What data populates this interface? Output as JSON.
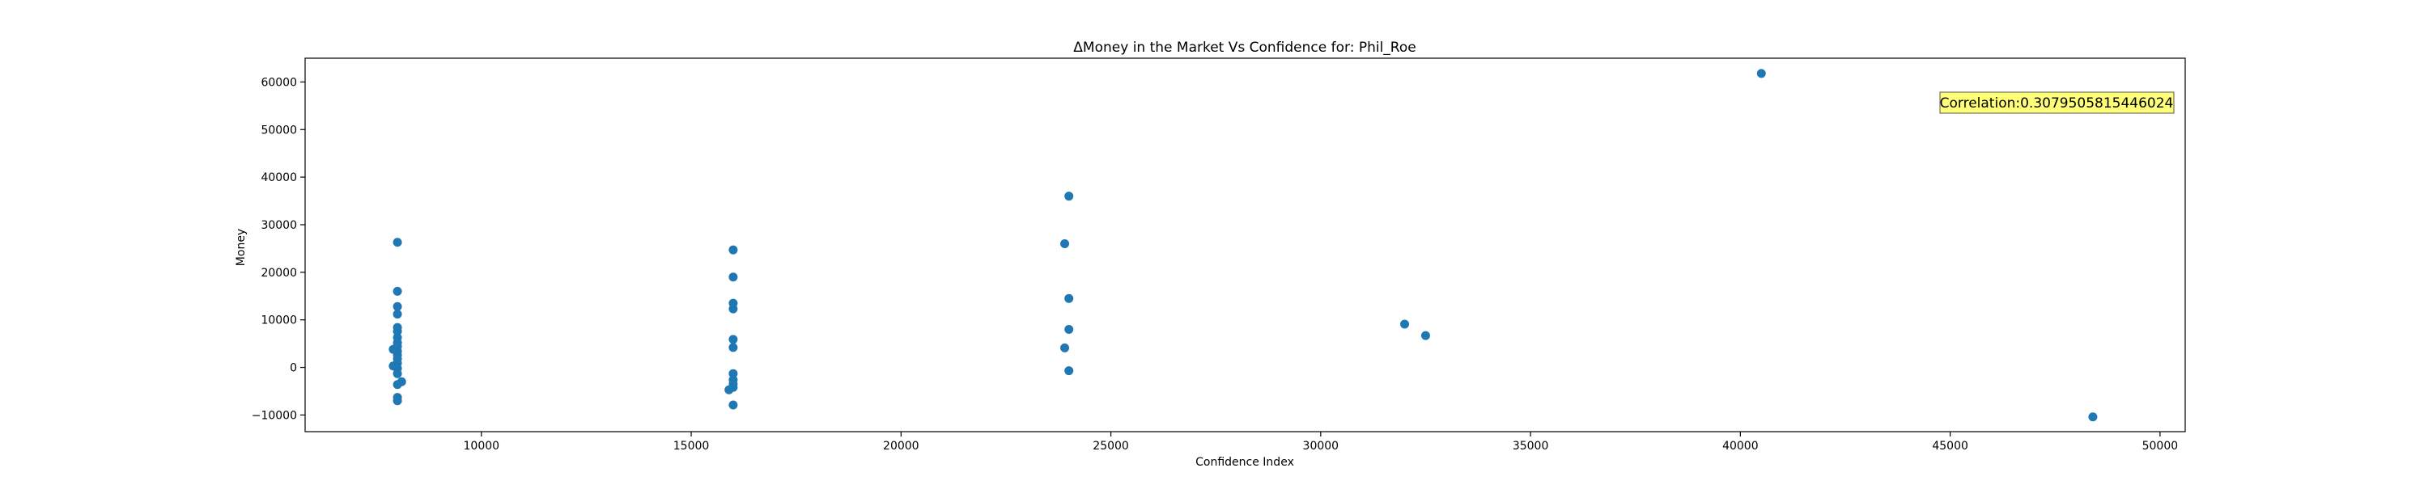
{
  "chart_data": {
    "type": "scatter",
    "title": "ΔMoney in the Market Vs Confidence for: Phil_Roe",
    "xlabel": "Confidence Index",
    "ylabel": "Money",
    "xlim": [
      5800,
      50600
    ],
    "ylim": [
      -13500,
      65000
    ],
    "xticks": [
      10000,
      15000,
      20000,
      25000,
      30000,
      35000,
      40000,
      45000,
      50000
    ],
    "yticks": [
      -10000,
      0,
      10000,
      20000,
      30000,
      40000,
      50000,
      60000
    ],
    "xtick_labels": [
      "10000",
      "15000",
      "20000",
      "25000",
      "30000",
      "35000",
      "40000",
      "45000",
      "50000"
    ],
    "ytick_labels": [
      "−10000",
      "0",
      "10000",
      "20000",
      "30000",
      "40000",
      "50000",
      "60000"
    ],
    "grid": false,
    "marker_color": "#1f77b4",
    "annotation": {
      "text": "Correlation:0.3079505815446024",
      "background": "#ffff77"
    },
    "points": [
      [
        8000,
        26300
      ],
      [
        8000,
        16000
      ],
      [
        8000,
        12800
      ],
      [
        8000,
        11200
      ],
      [
        8000,
        8400
      ],
      [
        8000,
        7600
      ],
      [
        8000,
        6300
      ],
      [
        8000,
        5200
      ],
      [
        8000,
        4400
      ],
      [
        7900,
        3800
      ],
      [
        8000,
        3400
      ],
      [
        8000,
        2600
      ],
      [
        8000,
        1800
      ],
      [
        8000,
        900
      ],
      [
        7900,
        300
      ],
      [
        8000,
        -200
      ],
      [
        8000,
        -1300
      ],
      [
        8100,
        -3000
      ],
      [
        8000,
        -3600
      ],
      [
        8000,
        -6300
      ],
      [
        8000,
        -7000
      ],
      [
        16000,
        24700
      ],
      [
        16000,
        19000
      ],
      [
        16000,
        13500
      ],
      [
        16000,
        12300
      ],
      [
        16000,
        5900
      ],
      [
        16000,
        4200
      ],
      [
        16000,
        -1300
      ],
      [
        16000,
        -2600
      ],
      [
        16000,
        -3500
      ],
      [
        16000,
        -4200
      ],
      [
        15900,
        -4700
      ],
      [
        16000,
        -7900
      ],
      [
        24000,
        36000
      ],
      [
        23900,
        26000
      ],
      [
        24000,
        14500
      ],
      [
        24000,
        8000
      ],
      [
        23900,
        4100
      ],
      [
        24000,
        -700
      ],
      [
        32000,
        9100
      ],
      [
        32500,
        6700
      ],
      [
        40500,
        61800
      ],
      [
        48400,
        -10400
      ]
    ]
  }
}
